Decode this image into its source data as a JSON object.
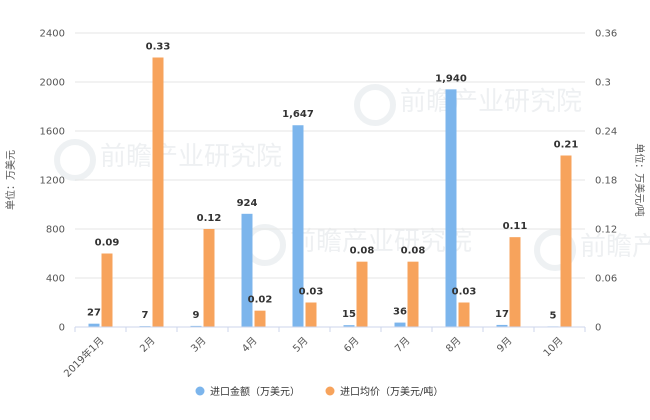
{
  "chart_data": {
    "type": "bar",
    "categories": [
      "2019年1月",
      "2月",
      "3月",
      "4月",
      "5月",
      "6月",
      "7月",
      "8月",
      "9月",
      "10月"
    ],
    "series": [
      {
        "name": "进口金额（万美元）",
        "axis": "left",
        "color": "#7cb5ec",
        "values": [
          27,
          7,
          9,
          924,
          1647,
          15,
          36,
          1940,
          17,
          5
        ],
        "labels": [
          "27",
          "7",
          "9",
          "924",
          "1,647",
          "15",
          "36",
          "1,940",
          "17",
          "5"
        ]
      },
      {
        "name": "进口均价（万美元/吨）",
        "axis": "right",
        "color": "#f7a35c",
        "values": [
          0.09,
          0.33,
          0.12,
          0.02,
          0.03,
          0.08,
          0.08,
          0.03,
          0.11,
          0.21
        ],
        "labels": [
          "0.09",
          "0.33",
          "0.12",
          "0.02",
          "0.03",
          "0.08",
          "0.08",
          "0.03",
          "0.11",
          "0.21"
        ]
      }
    ],
    "ylabel_left": "单位：万美元",
    "ylabel_right": "单位：万美元/吨",
    "ylim_left": [
      0,
      2400
    ],
    "ylim_right": [
      0,
      0.36
    ],
    "yticks_left": [
      "0",
      "400",
      "800",
      "1200",
      "1600",
      "2000",
      "2400"
    ],
    "yticks_right": [
      "0",
      "0.06",
      "0.12",
      "0.18",
      "0.24",
      "0.3",
      "0.36"
    ],
    "grid": true,
    "legend_position": "bottom-center"
  },
  "watermark": "前瞻产业研究院"
}
